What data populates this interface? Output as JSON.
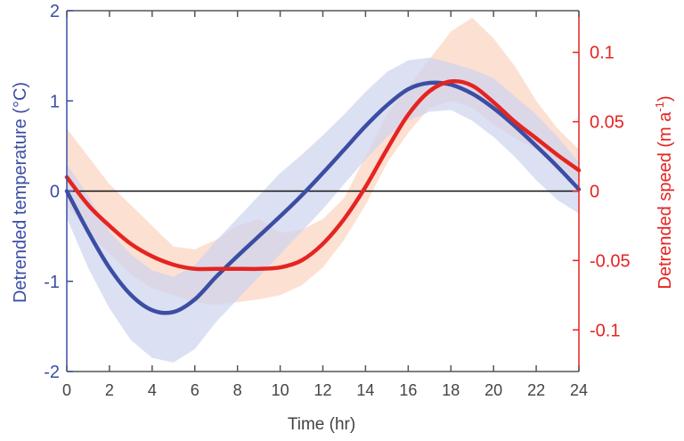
{
  "chart_data": {
    "type": "line",
    "xlabel": "Time (hr)",
    "ylabel_left": "Detrended temperature (°C)",
    "ylabel_right_text": "Detrended speed (m a",
    "ylabel_right_sup": "-1",
    "ylabel_right_close": ")",
    "xlim": [
      0,
      24
    ],
    "ylim_left": [
      -2,
      2
    ],
    "ylim_right": [
      -0.13,
      0.13
    ],
    "x_ticks": [
      0,
      2,
      4,
      6,
      8,
      10,
      12,
      14,
      16,
      18,
      20,
      22,
      24
    ],
    "x_tick_labels": [
      "0",
      "2",
      "4",
      "6",
      "8",
      "10",
      "12",
      "14",
      "16",
      "18",
      "20",
      "22",
      "24"
    ],
    "y_left_ticks": [
      -2,
      -1,
      0,
      1,
      2
    ],
    "y_left_tick_labels": [
      "-2",
      "-1",
      "0",
      "1",
      "2"
    ],
    "y_right_ticks": [
      -0.1,
      -0.05,
      0,
      0.05,
      0.1
    ],
    "y_right_tick_labels": [
      "-0.1",
      "-0.05",
      "0",
      "0.05",
      "0.1"
    ],
    "zero_line": 0,
    "series": [
      {
        "axis": "left",
        "color": "#3b4ea3",
        "band_color": "#cdd3ee",
        "x": [
          0,
          1,
          2,
          3,
          4,
          5,
          6,
          7,
          8,
          9,
          10,
          11,
          12,
          13,
          14,
          15,
          16,
          17,
          18,
          19,
          20,
          21,
          22,
          23,
          24
        ],
        "y": [
          0,
          -0.45,
          -0.85,
          -1.15,
          -1.32,
          -1.34,
          -1.2,
          -0.95,
          -0.72,
          -0.5,
          -0.28,
          -0.05,
          0.2,
          0.46,
          0.72,
          0.95,
          1.13,
          1.2,
          1.18,
          1.08,
          0.92,
          0.72,
          0.5,
          0.27,
          0.02
        ],
        "lower": [
          -0.3,
          -0.85,
          -1.3,
          -1.65,
          -1.85,
          -1.9,
          -1.75,
          -1.45,
          -1.2,
          -0.95,
          -0.7,
          -0.45,
          -0.2,
          0.08,
          0.35,
          0.6,
          0.78,
          0.88,
          0.9,
          0.78,
          0.6,
          0.38,
          0.12,
          -0.1,
          -0.25
        ],
        "upper": [
          0.3,
          -0.05,
          -0.45,
          -0.7,
          -0.88,
          -0.95,
          -0.82,
          -0.55,
          -0.3,
          -0.05,
          0.2,
          0.4,
          0.62,
          0.85,
          1.1,
          1.32,
          1.45,
          1.48,
          1.42,
          1.35,
          1.25,
          1.05,
          0.85,
          0.6,
          0.32
        ]
      },
      {
        "axis": "right",
        "color": "#e52421",
        "band_color": "#fbd5c3",
        "x": [
          0,
          1,
          2,
          3,
          4,
          5,
          6,
          7,
          8,
          9,
          10,
          11,
          12,
          13,
          14,
          15,
          16,
          17,
          18,
          19,
          20,
          21,
          22,
          23,
          24
        ],
        "y": [
          0.01,
          -0.01,
          -0.025,
          -0.038,
          -0.047,
          -0.053,
          -0.056,
          -0.056,
          -0.056,
          -0.056,
          -0.055,
          -0.05,
          -0.038,
          -0.02,
          0.003,
          0.03,
          0.055,
          0.072,
          0.079,
          0.076,
          0.064,
          0.05,
          0.038,
          0.026,
          0.015
        ],
        "lower": [
          -0.01,
          -0.03,
          -0.045,
          -0.06,
          -0.07,
          -0.075,
          -0.08,
          -0.082,
          -0.08,
          -0.078,
          -0.075,
          -0.068,
          -0.055,
          -0.035,
          -0.01,
          0.02,
          0.042,
          0.06,
          0.065,
          0.06,
          0.048,
          0.038,
          0.03,
          0.02,
          0.005
        ],
        "upper": [
          0.045,
          0.025,
          0.005,
          -0.01,
          -0.025,
          -0.04,
          -0.042,
          -0.035,
          -0.025,
          -0.02,
          -0.03,
          -0.028,
          -0.02,
          -0.005,
          0.025,
          0.055,
          0.075,
          0.095,
          0.115,
          0.125,
          0.11,
          0.09,
          0.065,
          0.045,
          0.03
        ]
      }
    ],
    "grid": false,
    "legend": "none"
  }
}
